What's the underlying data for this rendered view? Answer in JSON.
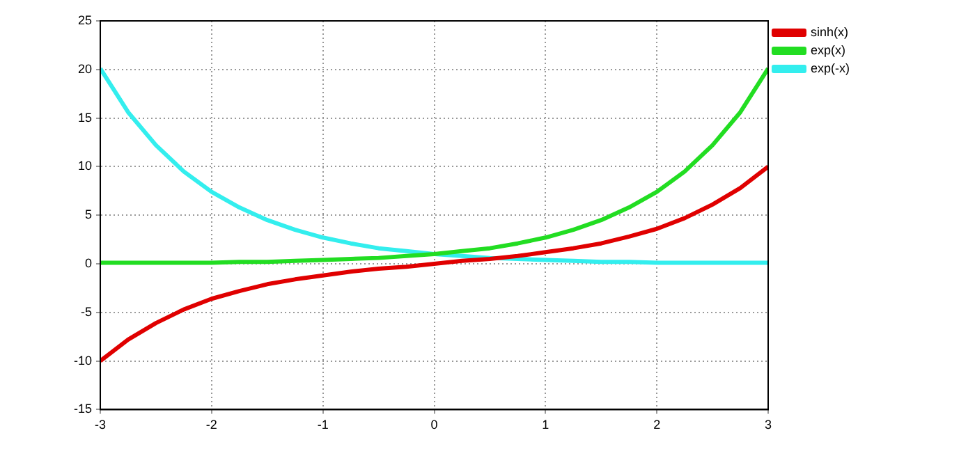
{
  "chart_data": {
    "type": "line",
    "x": [
      -3,
      -2.75,
      -2.5,
      -2.25,
      -2,
      -1.75,
      -1.5,
      -1.25,
      -1,
      -0.75,
      -0.5,
      -0.25,
      0,
      0.25,
      0.5,
      0.75,
      1,
      1.25,
      1.5,
      1.75,
      2,
      2.25,
      2.5,
      2.75,
      3
    ],
    "series": [
      {
        "name": "sinh(x)",
        "color": "#e00000",
        "values": [
          -10.0,
          -7.8,
          -6.1,
          -4.7,
          -3.6,
          -2.8,
          -2.1,
          -1.6,
          -1.2,
          -0.8,
          -0.5,
          -0.3,
          0,
          0.3,
          0.5,
          0.8,
          1.2,
          1.6,
          2.1,
          2.8,
          3.6,
          4.7,
          6.1,
          7.8,
          10.0
        ]
      },
      {
        "name": "exp(x)",
        "color": "#22dd22",
        "values": [
          0.1,
          0.1,
          0.1,
          0.1,
          0.1,
          0.2,
          0.2,
          0.3,
          0.4,
          0.5,
          0.6,
          0.8,
          1,
          1.3,
          1.6,
          2.1,
          2.7,
          3.5,
          4.5,
          5.8,
          7.4,
          9.5,
          12.2,
          15.6,
          20.1
        ]
      },
      {
        "name": "exp(-x)",
        "color": "#33eeee",
        "values": [
          20.1,
          15.6,
          12.2,
          9.5,
          7.4,
          5.8,
          4.5,
          3.5,
          2.7,
          2.1,
          1.6,
          1.3,
          1,
          0.8,
          0.6,
          0.5,
          0.4,
          0.3,
          0.2,
          0.2,
          0.1,
          0.1,
          0.1,
          0.1,
          0.1
        ]
      }
    ],
    "xlim": [
      -3,
      3
    ],
    "xticks": [
      -3,
      -2,
      -1,
      0,
      1,
      2,
      3
    ],
    "ylim": [
      -15,
      25
    ],
    "yticks": [
      -15,
      -10,
      -5,
      0,
      5,
      10,
      15,
      20,
      25
    ],
    "grid": true,
    "legend": "top right",
    "marker": "none",
    "line_style": "solid"
  }
}
